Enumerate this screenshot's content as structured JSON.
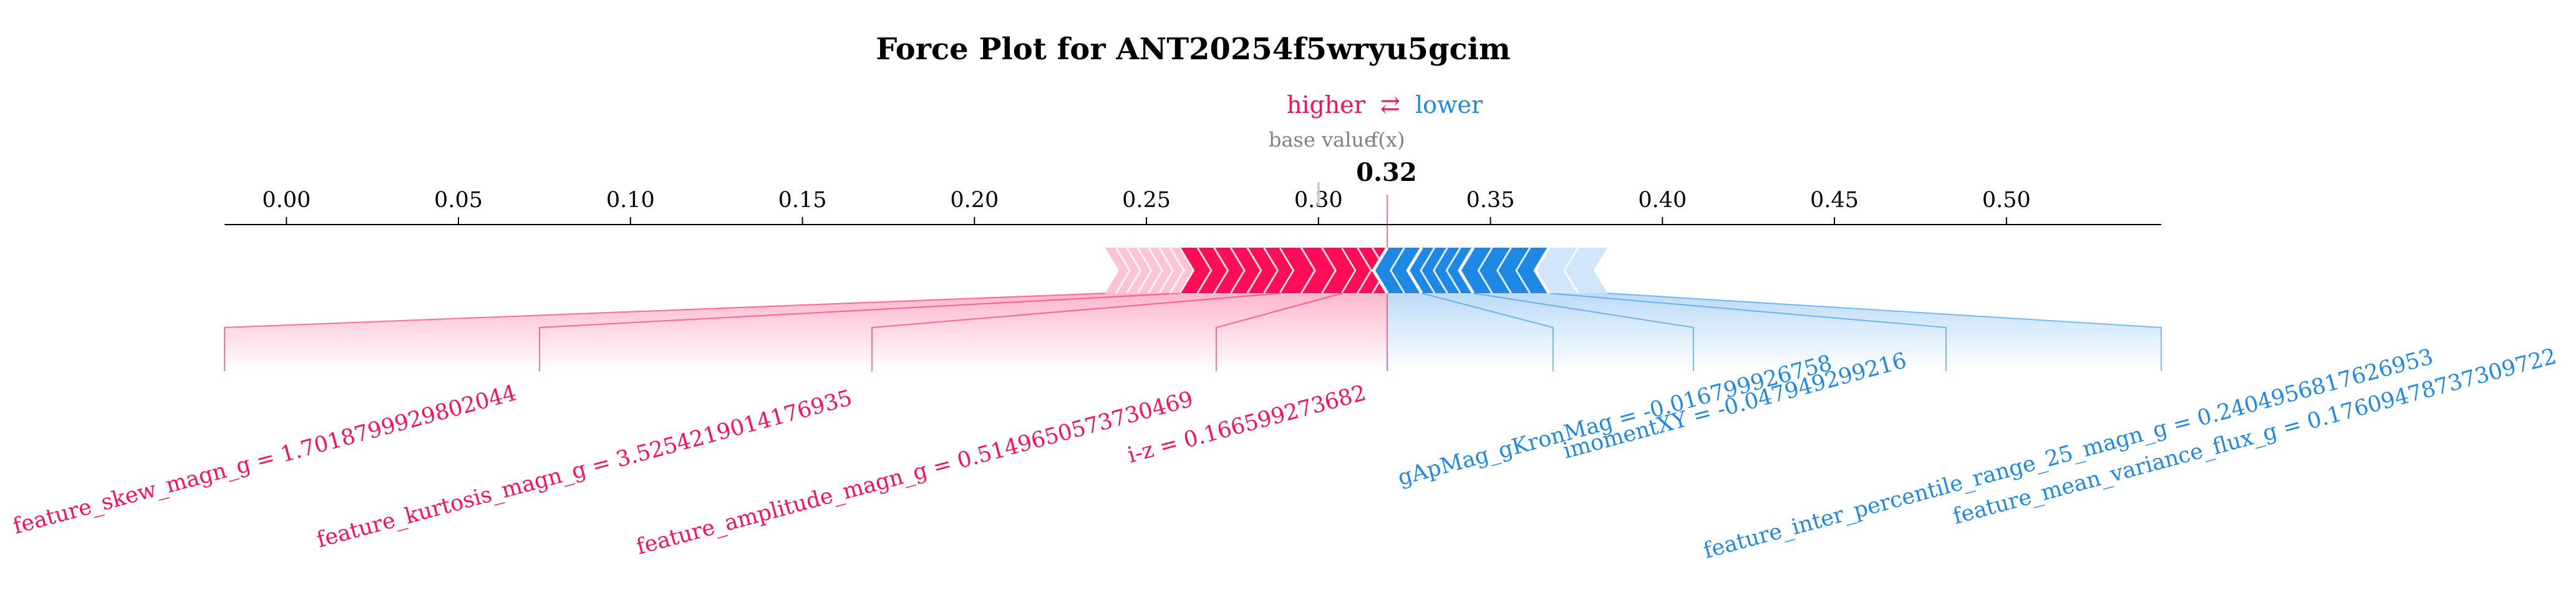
{
  "chart_data": {
    "type": "force",
    "title": "Force Plot for ANT20254f5wryu5gcim",
    "legend": {
      "higher": "higher",
      "arrow": "⇄",
      "lower": "lower"
    },
    "base_value_label": "base value",
    "fx_label": "f(x)",
    "fx_value": 0.32,
    "fx_value_label": "0.32",
    "base_value": 0.3,
    "xlim": [
      -0.018,
      0.545
    ],
    "ticks": [
      0.0,
      0.05,
      0.1,
      0.15,
      0.2,
      0.25,
      0.3,
      0.35,
      0.4,
      0.45,
      0.5
    ],
    "tick_labels": [
      "0.00",
      "0.05",
      "0.10",
      "0.15",
      "0.20",
      "0.25",
      "0.30",
      "0.35",
      "0.40",
      "0.45",
      "0.50"
    ],
    "positive_features": [
      {
        "label": "feature_skew_magn_g = 1.7018799929802044",
        "from": 0.238,
        "to": 0.26
      },
      {
        "label": "feature_kurtosis_magn_g = 3.5254219014176935",
        "from": 0.26,
        "to": 0.289
      },
      {
        "label": "feature_amplitude_magn_g = 0.5149650573730469",
        "from": 0.289,
        "to": 0.307
      },
      {
        "label": "i-z = 0.166599273682",
        "from": 0.307,
        "to": 0.32
      }
    ],
    "negative_features": [
      {
        "label": "gApMag_gKronMag = -0.016799926758",
        "from": 0.32,
        "to": 0.33
      },
      {
        "label": "imomentXY = -0.047949299216",
        "from": 0.33,
        "to": 0.345
      },
      {
        "label": "feature_inter_percentile_range_25_magn_g = 0.2404956817626953",
        "from": 0.345,
        "to": 0.367
      },
      {
        "label": "feature_mean_variance_flux_g = 0.17609478737309722",
        "from": 0.367,
        "to": 0.384
      }
    ],
    "colors": {
      "positive": "#ff0d57",
      "positive_light": "#ffc3d5",
      "negative": "#1e88e5",
      "negative_light": "#d1e6fa",
      "base": "#808080"
    },
    "grid": false
  }
}
